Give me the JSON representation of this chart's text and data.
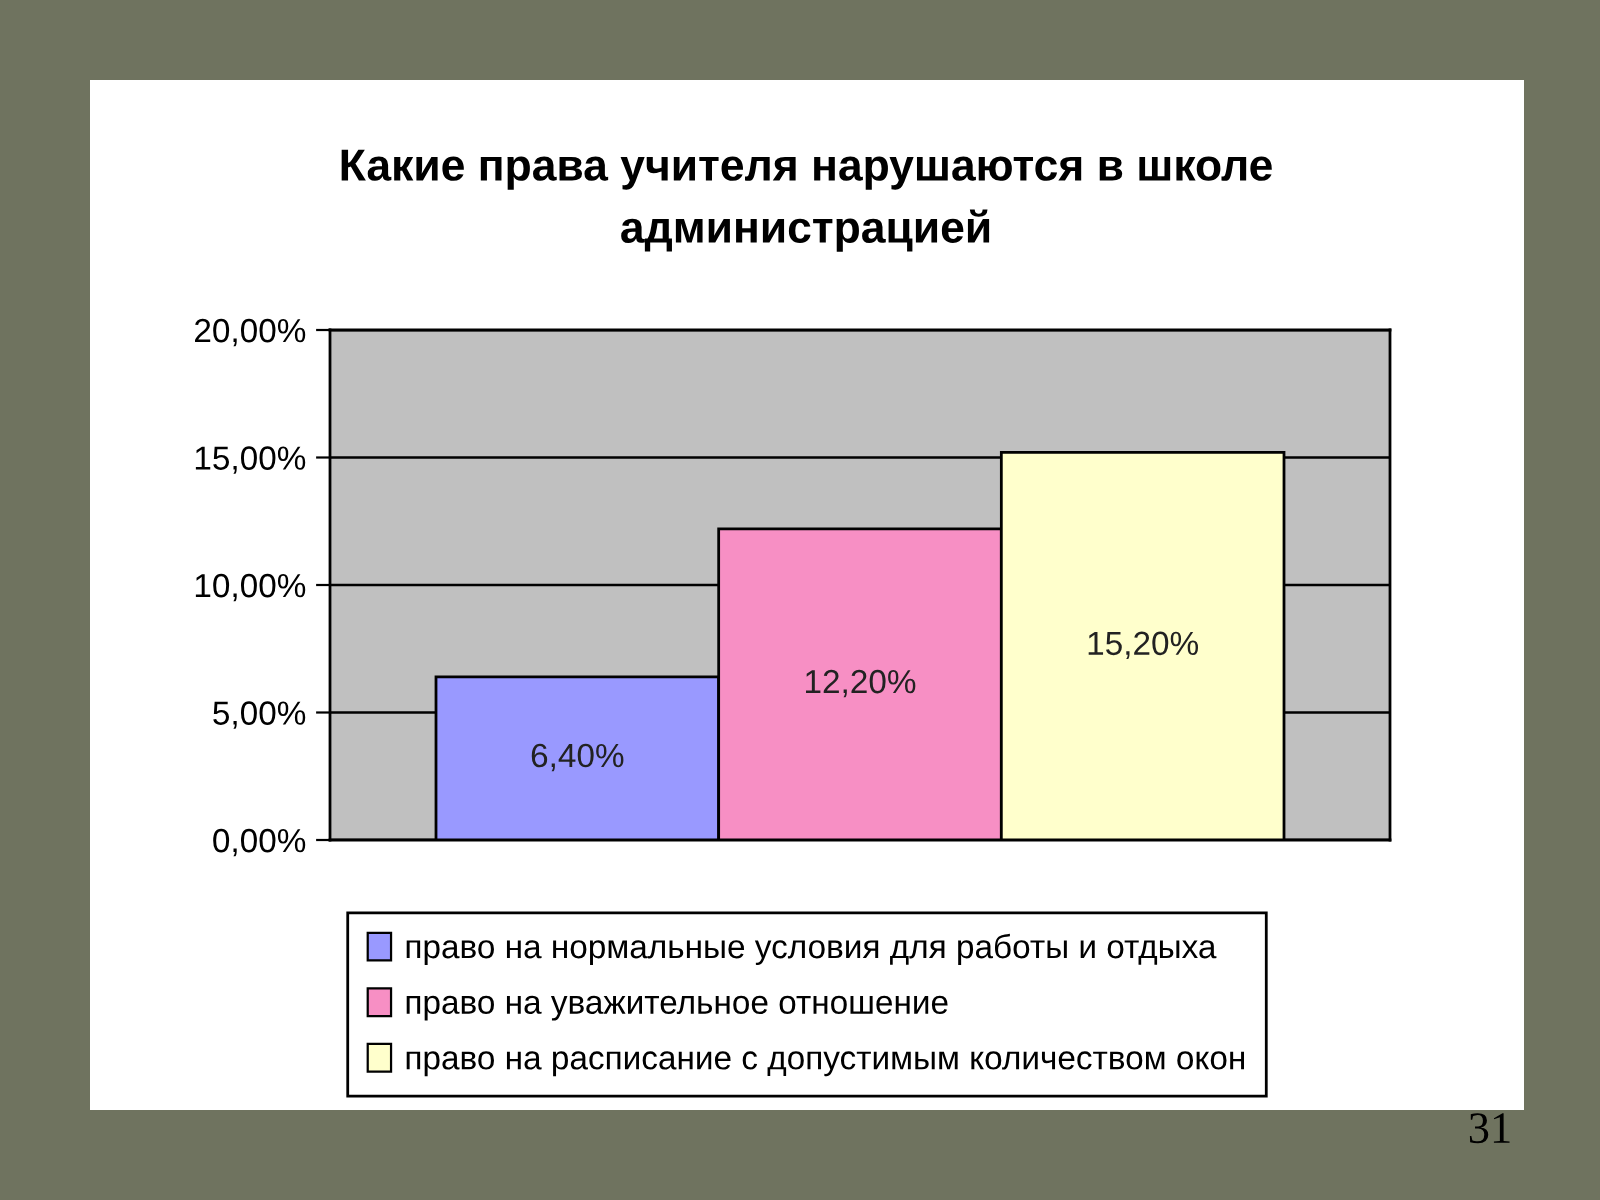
{
  "chart_data": {
    "type": "bar",
    "title": "Какие права учителя нарушаются в школе\nадминистрацией",
    "categories": [
      null
    ],
    "series": [
      {
        "name": "право на нормальные условия для работы и отдыха",
        "color": "#9999ff",
        "values": [
          6.4
        ],
        "value_labels": [
          "6,40%"
        ]
      },
      {
        "name": "право на уважительное отношение",
        "color": "#f78fc4",
        "values": [
          12.2
        ],
        "value_labels": [
          "12,20%"
        ]
      },
      {
        "name": "право на расписание с допустимым количеством окон",
        "color": "#ffffcc",
        "values": [
          15.2
        ],
        "value_labels": [
          "15,20%"
        ]
      }
    ],
    "ylim": [
      0,
      20
    ],
    "yticks": [
      {
        "value": 0,
        "label": "0,00%"
      },
      {
        "value": 5,
        "label": "5,00%"
      },
      {
        "value": 10,
        "label": "10,00%"
      },
      {
        "value": 15,
        "label": "15,00%"
      },
      {
        "value": 20,
        "label": "20,00%"
      }
    ],
    "grid": "y",
    "legend": "bottom",
    "annotations": [
      "31"
    ]
  }
}
